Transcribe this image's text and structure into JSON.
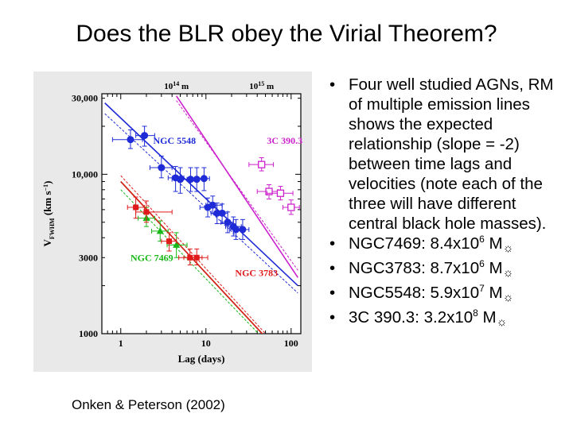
{
  "slide": {
    "title": "Does the BLR obey the Virial Theorem?",
    "credit": "Onken & Peterson (2002)",
    "bullets": [
      {
        "text": "Four well studied AGNs, RM of multiple emission lines shows the expected relationship (slope = -2) between time lags and velocities (note each of the three will have different central black hole masses)."
      },
      {
        "name": "NGC7469: 8.4x10",
        "exp": "6",
        "unit": " M"
      },
      {
        "name": "NGC3783: 8.7x10",
        "exp": "6",
        "unit": " M"
      },
      {
        "name": "NGC5548: 5.9x10",
        "exp": "7",
        "unit": " M"
      },
      {
        "name": "3C 390.3:  3.2x10",
        "exp": "8",
        "unit": " M"
      }
    ],
    "bullet_glyph": "•",
    "sun_glyph": "☼"
  },
  "chart_data": {
    "type": "scatter",
    "xscale": "log",
    "yscale": "log",
    "xlim": [
      0.6,
      130
    ],
    "ylim": [
      1000,
      32000
    ],
    "xlabel": "Lag (days)",
    "ylabel": "V",
    "ylabel_sub": "FWHM",
    "ylabel_unit": " (km s",
    "ylabel_exp": "−1",
    "ylabel_close": ")",
    "xticks": [
      {
        "v": 1,
        "label": "1"
      },
      {
        "v": 10,
        "label": "10"
      },
      {
        "v": 100,
        "label": "100"
      }
    ],
    "yticks": [
      {
        "v": 1000,
        "label": "1000"
      },
      {
        "v": 3000,
        "label": "3000"
      },
      {
        "v": 10000,
        "label": "10,000"
      },
      {
        "v": 30000,
        "label": "30,000"
      }
    ],
    "top_labels": [
      {
        "v": 4.5,
        "text": "10",
        "exp": "14",
        "unit": " m"
      },
      {
        "v": 45,
        "text": "10",
        "exp": "15",
        "unit": " m"
      }
    ],
    "series": [
      {
        "name": "NGC 5548",
        "color": "#1f2bd6",
        "marker": "circle",
        "label_at": [
          2.4,
          15500
        ],
        "fit": [
          [
            0.65,
            28000
          ],
          [
            120,
            2000
          ]
        ],
        "fit_alt": [
          [
            0.65,
            24000
          ],
          [
            120,
            1800
          ]
        ],
        "points": [
          [
            1.3,
            16500
          ],
          [
            1.9,
            17500
          ],
          [
            3.0,
            11000
          ],
          [
            4.4,
            9500
          ],
          [
            5.0,
            9300
          ],
          [
            6.6,
            9300
          ],
          [
            7.8,
            9300
          ],
          [
            9.5,
            9400
          ],
          [
            10.5,
            6200
          ],
          [
            12.0,
            6400
          ],
          [
            13.5,
            5700
          ],
          [
            15.5,
            5700
          ],
          [
            18.0,
            5000
          ],
          [
            21.0,
            4700
          ],
          [
            22.5,
            4500
          ],
          [
            27.0,
            4500
          ]
        ],
        "xerr": [
          [
            0.8,
            1.8
          ],
          [
            1.5,
            2.5
          ],
          [
            2.2,
            4.0
          ],
          [
            3.6,
            5.5
          ],
          [
            4.0,
            6.0
          ],
          [
            5.2,
            8.2
          ],
          [
            6.2,
            9.5
          ],
          [
            8.0,
            11.0
          ],
          [
            8.5,
            13.0
          ],
          [
            10.0,
            15.5
          ],
          [
            11.5,
            16.0
          ],
          [
            13.0,
            18.0
          ],
          [
            15.0,
            21.0
          ],
          [
            17.0,
            26.0
          ],
          [
            19.0,
            27.0
          ],
          [
            23.0,
            32.0
          ]
        ],
        "yerr": [
          [
            14500,
            19000
          ],
          [
            15000,
            20000
          ],
          [
            9500,
            13000
          ],
          [
            7800,
            11200
          ],
          [
            7600,
            11000
          ],
          [
            7800,
            11000
          ],
          [
            7800,
            11000
          ],
          [
            7900,
            11000
          ],
          [
            5400,
            7100
          ],
          [
            5700,
            7300
          ],
          [
            4900,
            6600
          ],
          [
            4900,
            6500
          ],
          [
            4300,
            5800
          ],
          [
            4100,
            5400
          ],
          [
            3900,
            5200
          ],
          [
            3900,
            5200
          ]
        ]
      },
      {
        "name": "3C 390.3",
        "color": "#cc22cc",
        "marker": "open-square",
        "label_at": [
          52,
          15500
        ],
        "fit": [
          [
            4.5,
            31000
          ],
          [
            120,
            2250
          ]
        ],
        "fit_alt": [
          [
            4.5,
            29000
          ],
          [
            120,
            2500
          ]
        ],
        "points": [
          [
            45,
            11500
          ],
          [
            55,
            7800
          ],
          [
            75,
            7600
          ],
          [
            100,
            6200
          ]
        ],
        "xerr": [
          [
            32,
            62
          ],
          [
            40,
            70
          ],
          [
            52,
            105
          ],
          [
            80,
            125
          ]
        ],
        "yerr": [
          [
            10500,
            12700
          ],
          [
            7000,
            8600
          ],
          [
            6900,
            8400
          ],
          [
            5600,
            6900
          ]
        ]
      },
      {
        "name": "NGC 7469",
        "color": "#16b816",
        "marker": "triangle",
        "label_at": [
          1.3,
          2850
        ],
        "fit": [
          [
            1.0,
            9000
          ],
          [
            55,
            900
          ]
        ],
        "fit_alt": [
          [
            1.0,
            8000
          ],
          [
            50,
            900
          ]
        ],
        "points": [
          [
            2.0,
            5300
          ],
          [
            2.9,
            4400
          ],
          [
            4.5,
            3600
          ]
        ],
        "xerr": [
          [
            1.6,
            2.5
          ],
          [
            2.3,
            3.6
          ],
          [
            3.5,
            6.0
          ]
        ],
        "yerr": [
          [
            4700,
            6200
          ],
          [
            3800,
            5100
          ],
          [
            3000,
            4300
          ]
        ]
      },
      {
        "name": "NGC 3783",
        "color": "#e01a1a",
        "marker": "square",
        "label_at": [
          22,
          2300
        ],
        "fit": [
          [
            1.0,
            9000
          ],
          [
            55,
            900
          ]
        ],
        "fit_alt": [
          [
            1.0,
            9800
          ],
          [
            60,
            900
          ]
        ],
        "points": [
          [
            1.5,
            6200
          ],
          [
            2.0,
            5800
          ],
          [
            3.7,
            3800
          ],
          [
            6.5,
            3000
          ],
          [
            7.8,
            3000
          ]
        ],
        "xerr": [
          [
            1.2,
            1.9
          ],
          [
            1.5,
            4.0
          ],
          [
            3.0,
            4.5
          ],
          [
            4.8,
            9.0
          ],
          [
            5.5,
            10.5
          ]
        ],
        "yerr": [
          [
            5300,
            7200
          ],
          [
            5000,
            6800
          ],
          [
            3300,
            4300
          ],
          [
            2700,
            3400
          ],
          [
            2700,
            3400
          ]
        ]
      }
    ]
  }
}
